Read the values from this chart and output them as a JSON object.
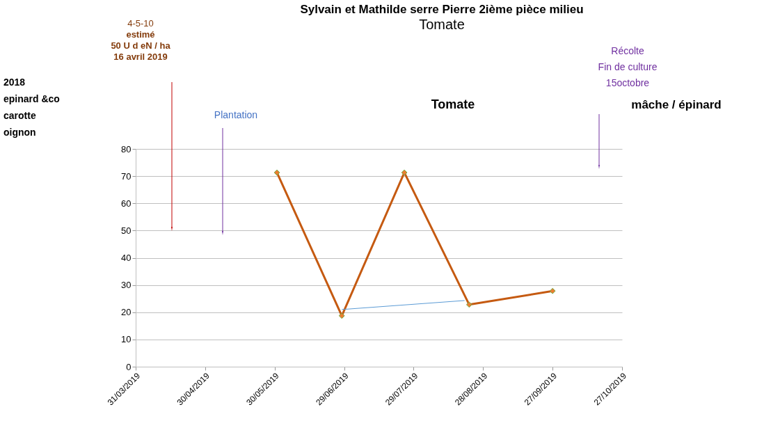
{
  "chart_data": {
    "type": "line",
    "title": "Sylvain et Mathilde  serre Pierre  2ième pièce milieu",
    "subtitle": "Tomate",
    "x": [
      "2019-05-31",
      "2019-06-28",
      "2019-07-25",
      "2019-08-22",
      "2019-09-27"
    ],
    "series": [
      {
        "color": "#c55a11",
        "values": [
          71.3,
          18.7,
          71.3,
          22.8,
          27.8
        ],
        "marker": "diamond"
      },
      {
        "color": "#5b9bd5",
        "x": [
          "2019-06-28",
          "2019-08-20"
        ],
        "values": [
          21,
          24.3
        ],
        "marker": "none"
      }
    ],
    "xlim": [
      "2019-03-31",
      "2019-10-27"
    ],
    "xticks": [
      {
        "value": "2019-03-31",
        "label": "31/03/2019"
      },
      {
        "value": "2019-04-30",
        "label": "30/04/2019"
      },
      {
        "value": "2019-05-30",
        "label": "30/05/2019"
      },
      {
        "value": "2019-06-29",
        "label": "29/06/2019"
      },
      {
        "value": "2019-07-29",
        "label": "29/07/2019"
      },
      {
        "value": "2019-08-28",
        "label": "28/08/2019"
      },
      {
        "value": "2019-09-27",
        "label": "27/09/2019"
      },
      {
        "value": "2019-10-27",
        "label": "27/10/2019"
      }
    ],
    "ylim": [
      0,
      80
    ],
    "yticks": [
      0,
      10,
      20,
      30,
      40,
      50,
      60,
      70,
      80
    ],
    "grid": "y",
    "annotations": [
      "4-5-10\nestimé\n50 U d eN / ha\n16 avril 2019",
      "Plantation",
      "Récolte\nFin de culture\n15octobre",
      "2018\nepinard &co\ncarotte\noignon",
      "Tomate",
      "mâche / épinard"
    ]
  }
}
